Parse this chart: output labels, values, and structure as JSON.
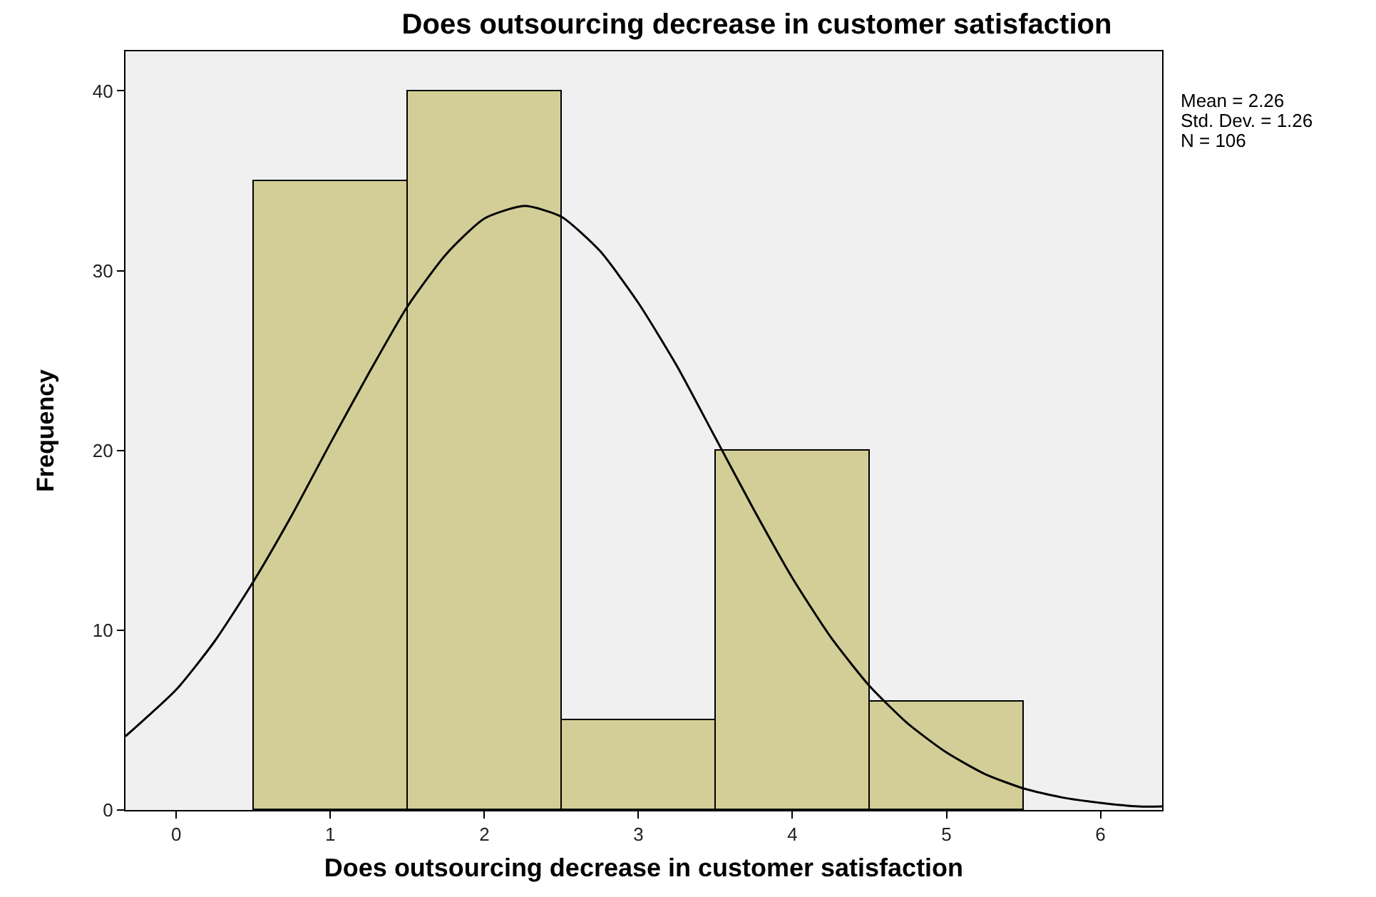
{
  "chart_data": {
    "type": "histogram",
    "title": "Does outsourcing decrease in customer satisfaction",
    "xlabel": "Does outsourcing decrease in customer satisfaction",
    "ylabel": "Frequency",
    "bins": [
      0.5,
      1.5,
      2.5,
      3.5,
      4.5,
      5.5
    ],
    "values": [
      35,
      40,
      5,
      20,
      6
    ],
    "color": "#d3ce97",
    "series": [
      {
        "type": "line",
        "color": "#000000",
        "x": [
          -0.33,
          0,
          0.25,
          0.5,
          0.75,
          1,
          1.25,
          1.5,
          1.75,
          2,
          2.26,
          2.5,
          2.75,
          3,
          3.25,
          3.5,
          3.75,
          4,
          4.25,
          4.5,
          4.75,
          5,
          5.25,
          5.5,
          5.75,
          6,
          6.25,
          6.4
        ],
        "values": [
          4.1,
          6.7,
          9.4,
          12.7,
          16.4,
          20.4,
          24.3,
          28.0,
          30.9,
          32.9,
          33.6,
          33.0,
          31.1,
          28.2,
          24.7,
          20.7,
          16.7,
          12.9,
          9.6,
          6.9,
          4.8,
          3.2,
          2.0,
          1.2,
          0.7,
          0.4,
          0.2,
          0.2
        ]
      }
    ],
    "xlim": [
      -0.33,
      6.4
    ],
    "xticks": [
      0,
      1,
      2,
      3,
      4,
      5,
      6
    ],
    "ylim": [
      0,
      42.2
    ],
    "yticks": [
      0,
      10,
      20,
      30,
      40
    ],
    "annotations": [
      "Mean = 2.26",
      "Std. Dev. = 1.26",
      "N = 106"
    ],
    "grid": false,
    "marker": "none"
  }
}
